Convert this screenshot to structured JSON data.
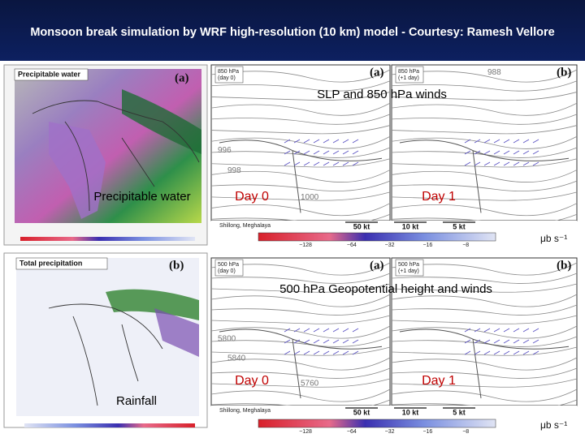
{
  "header": {
    "title": "Monsoon break simulation by WRF high-resolution (10 km) model  - Courtesy: Ramesh Vellore"
  },
  "left_maps": [
    {
      "title": "Precipitable water",
      "label": "(a)",
      "caption": "Precipitable water"
    },
    {
      "title": "Total precipitation",
      "label": "(b)",
      "caption": "Rainfall"
    }
  ],
  "right_panels": [
    {
      "caption": "SLP and 850 hPa winds",
      "maps": [
        {
          "label": "(a)",
          "level": "850 hPa",
          "time": "(day 0)",
          "day": "Day 0"
        },
        {
          "label": "(b)",
          "level": "850 hPa",
          "time": "(+1 day)",
          "day": "Day 1"
        }
      ],
      "contours": [
        "996",
        "998",
        "1000",
        "988"
      ],
      "station": "Shillong, Meghalaya",
      "vectors": [
        "50 kt",
        "10 kt",
        "5 kt"
      ],
      "scale_ticks": [
        "−128",
        "−64",
        "−32",
        "−16",
        "−8"
      ],
      "unit": "μb s⁻¹"
    },
    {
      "caption": "500 hPa Geopotential height and winds",
      "maps": [
        {
          "label": "(a)",
          "level": "500 hPa",
          "time": "(day 0)",
          "day": "Day 0"
        },
        {
          "label": "(b)",
          "level": "500 hPa",
          "time": "(+1 day)",
          "day": "Day 1"
        }
      ],
      "contours": [
        "5800",
        "5840",
        "5760"
      ],
      "station": "Shillong, Meghalaya",
      "vectors": [
        "50 kt",
        "10 kt",
        "5 kt"
      ],
      "scale_ticks": [
        "−128",
        "−64",
        "−32",
        "−16",
        "−8"
      ],
      "unit": "μb s⁻¹"
    }
  ]
}
